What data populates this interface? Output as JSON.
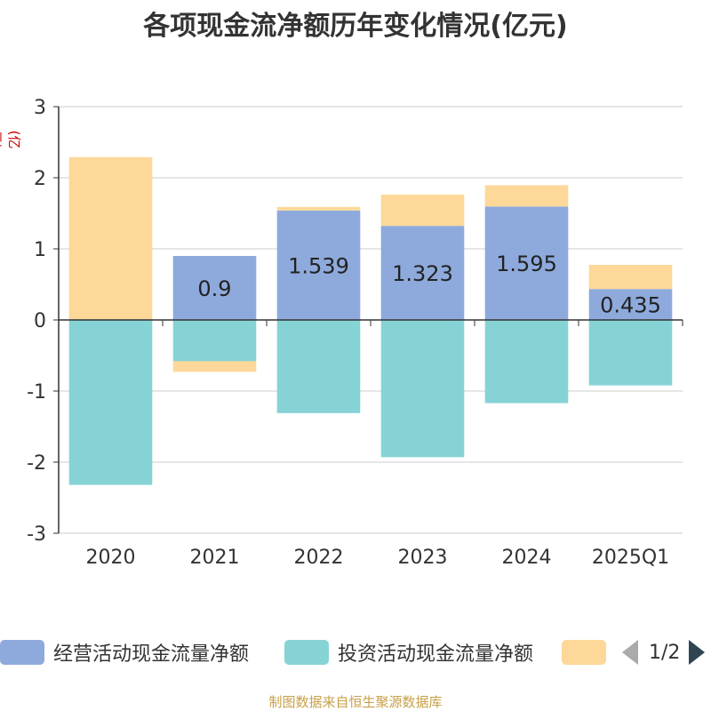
{
  "title": "各项现金流净额历年变化情况(亿元)",
  "y_unit": "(亿元)",
  "source": "制图数据来自恒生聚源数据库",
  "legend": {
    "items": [
      {
        "label": "经营活动现金流量净额",
        "color": "#8eaadc"
      },
      {
        "label": "投资活动现金流量净额",
        "color": "#86d3d6"
      },
      {
        "label": "",
        "color": "#fdd898"
      }
    ],
    "page_text": "1/2"
  },
  "chart_data": {
    "type": "bar",
    "stacked": true,
    "title": "各项现金流净额历年变化情况(亿元)",
    "categories": [
      "2020",
      "2021",
      "2022",
      "2023",
      "2024",
      "2025Q1"
    ],
    "ylim": [
      -3,
      3
    ],
    "yticks": [
      3,
      2,
      1,
      0,
      -1,
      -2,
      -3
    ],
    "grid": true,
    "legend_position": "bottom",
    "series": [
      {
        "name": "经营活动现金流量净额",
        "color": "#8eaadc",
        "values": [
          0.01,
          0.9,
          1.539,
          1.323,
          1.595,
          0.435
        ],
        "labels": [
          "",
          "0.9",
          "1.539",
          "1.323",
          "1.595",
          "0.435"
        ]
      },
      {
        "name": "投资活动现金流量净额",
        "color": "#86d3d6",
        "values": [
          -2.32,
          -0.58,
          -1.31,
          -1.93,
          -1.17,
          -0.92
        ]
      },
      {
        "name": "",
        "color": "#fdd898",
        "values": [
          2.28,
          -0.15,
          0.05,
          0.44,
          0.3,
          0.34
        ]
      }
    ]
  }
}
